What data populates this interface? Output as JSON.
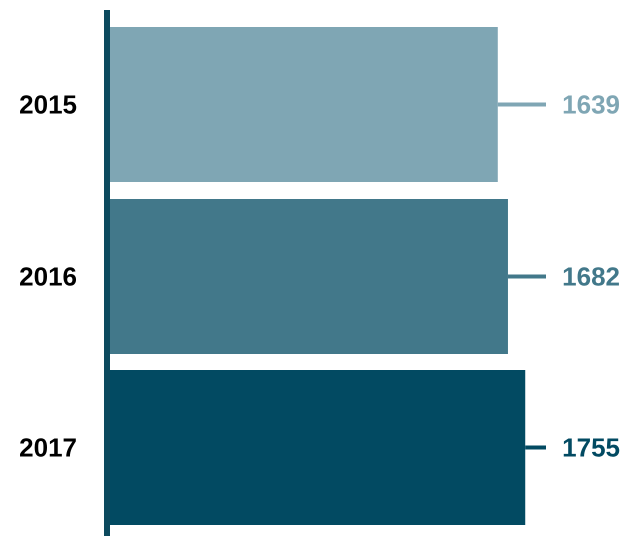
{
  "chart_data": {
    "type": "bar",
    "orientation": "horizontal",
    "categories": [
      "2015",
      "2016",
      "2017"
    ],
    "values": [
      1639,
      1682,
      1755
    ],
    "colors": [
      "#7fa6b4",
      "#42788a",
      "#024a62"
    ],
    "axis_color": "#0c4a5e",
    "category_label_color": "#000000",
    "title": "",
    "xlabel": "",
    "ylabel": "",
    "grid": false,
    "legend": "none"
  }
}
